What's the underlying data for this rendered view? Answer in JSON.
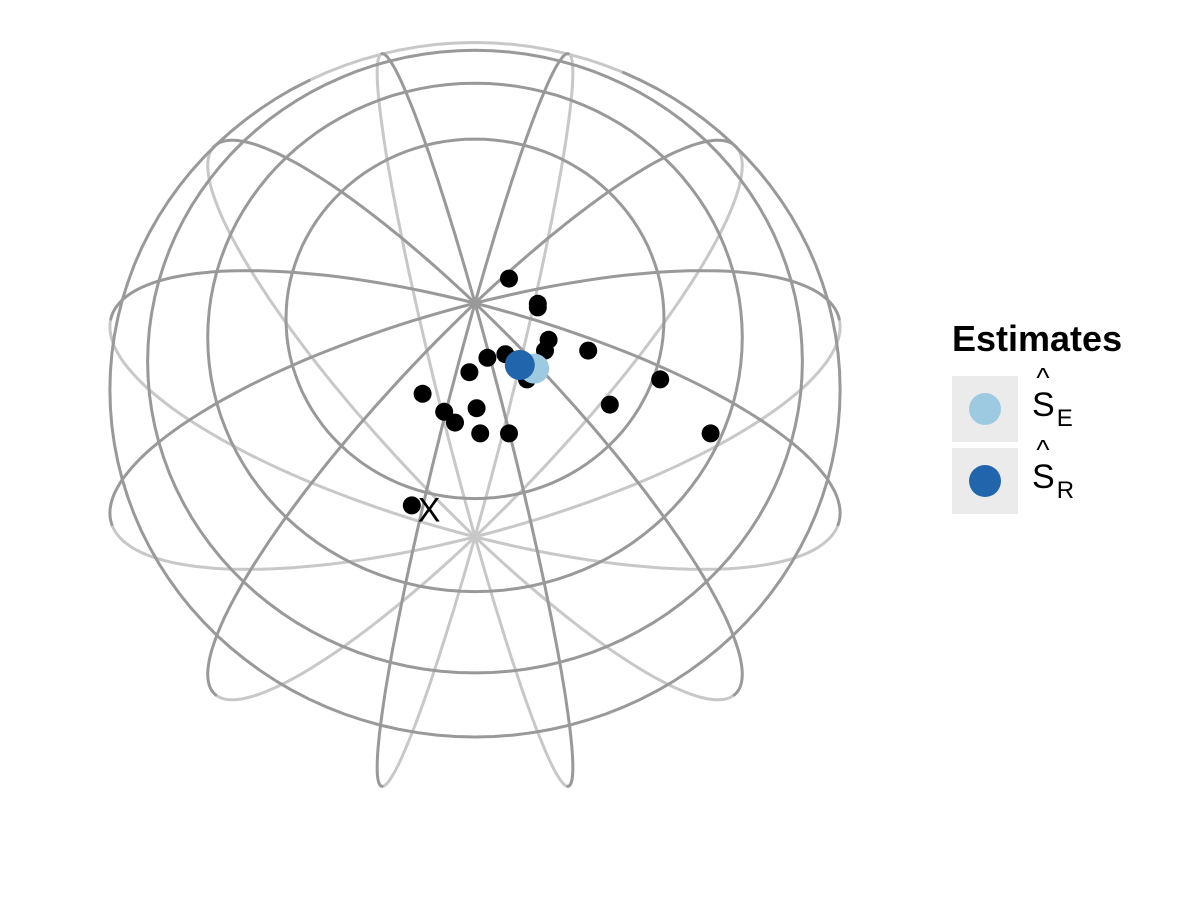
{
  "chart_data": {
    "type": "scatter",
    "projection": "orthographic sphere",
    "globe_tilt_deg": 72,
    "globe_rotation_deg": 15,
    "meridians_deg": [
      0,
      30,
      60,
      90,
      120,
      150,
      180,
      210,
      240,
      270,
      300,
      330
    ],
    "parallels_deg": [
      15,
      30,
      45,
      60
    ],
    "points": [
      {
        "x": -0.05,
        "y": 0.24
      },
      {
        "x": 0.03,
        "y": 0.16
      },
      {
        "x": 0.03,
        "y": 0.17
      },
      {
        "x": 0.06,
        "y": 0.07
      },
      {
        "x": 0.05,
        "y": 0.04
      },
      {
        "x": 0.17,
        "y": 0.04
      },
      {
        "x": -0.11,
        "y": 0.02
      },
      {
        "x": -0.06,
        "y": 0.03
      },
      {
        "x": -0.16,
        "y": -0.02
      },
      {
        "x": 0.0,
        "y": -0.04
      },
      {
        "x": 0.37,
        "y": -0.04
      },
      {
        "x": -0.29,
        "y": -0.08
      },
      {
        "x": -0.23,
        "y": -0.13
      },
      {
        "x": -0.14,
        "y": -0.12
      },
      {
        "x": 0.23,
        "y": -0.11
      },
      {
        "x": -0.2,
        "y": -0.16
      },
      {
        "x": -0.13,
        "y": -0.19
      },
      {
        "x": -0.05,
        "y": -0.19
      },
      {
        "x": 0.51,
        "y": -0.19
      },
      {
        "x": -0.32,
        "y": -0.39,
        "label": "X"
      }
    ],
    "estimates": [
      {
        "name": "E",
        "x": 0.02,
        "y": -0.01,
        "color": "#9ecae1"
      },
      {
        "name": "R",
        "x": -0.02,
        "y": 0.0,
        "color": "#2166ac"
      }
    ],
    "legend": {
      "title": "Estimates",
      "position": "right",
      "entries": [
        {
          "symbol": "S",
          "hat": "^",
          "subscript": "E",
          "color": "#9ecae1"
        },
        {
          "symbol": "S",
          "hat": "^",
          "subscript": "R",
          "color": "#2166ac"
        }
      ]
    },
    "colors": {
      "grid_front": "#999999",
      "grid_back": "#c8c8c8",
      "points": "#000000",
      "legend_key_bg": "#ebebeb"
    }
  }
}
